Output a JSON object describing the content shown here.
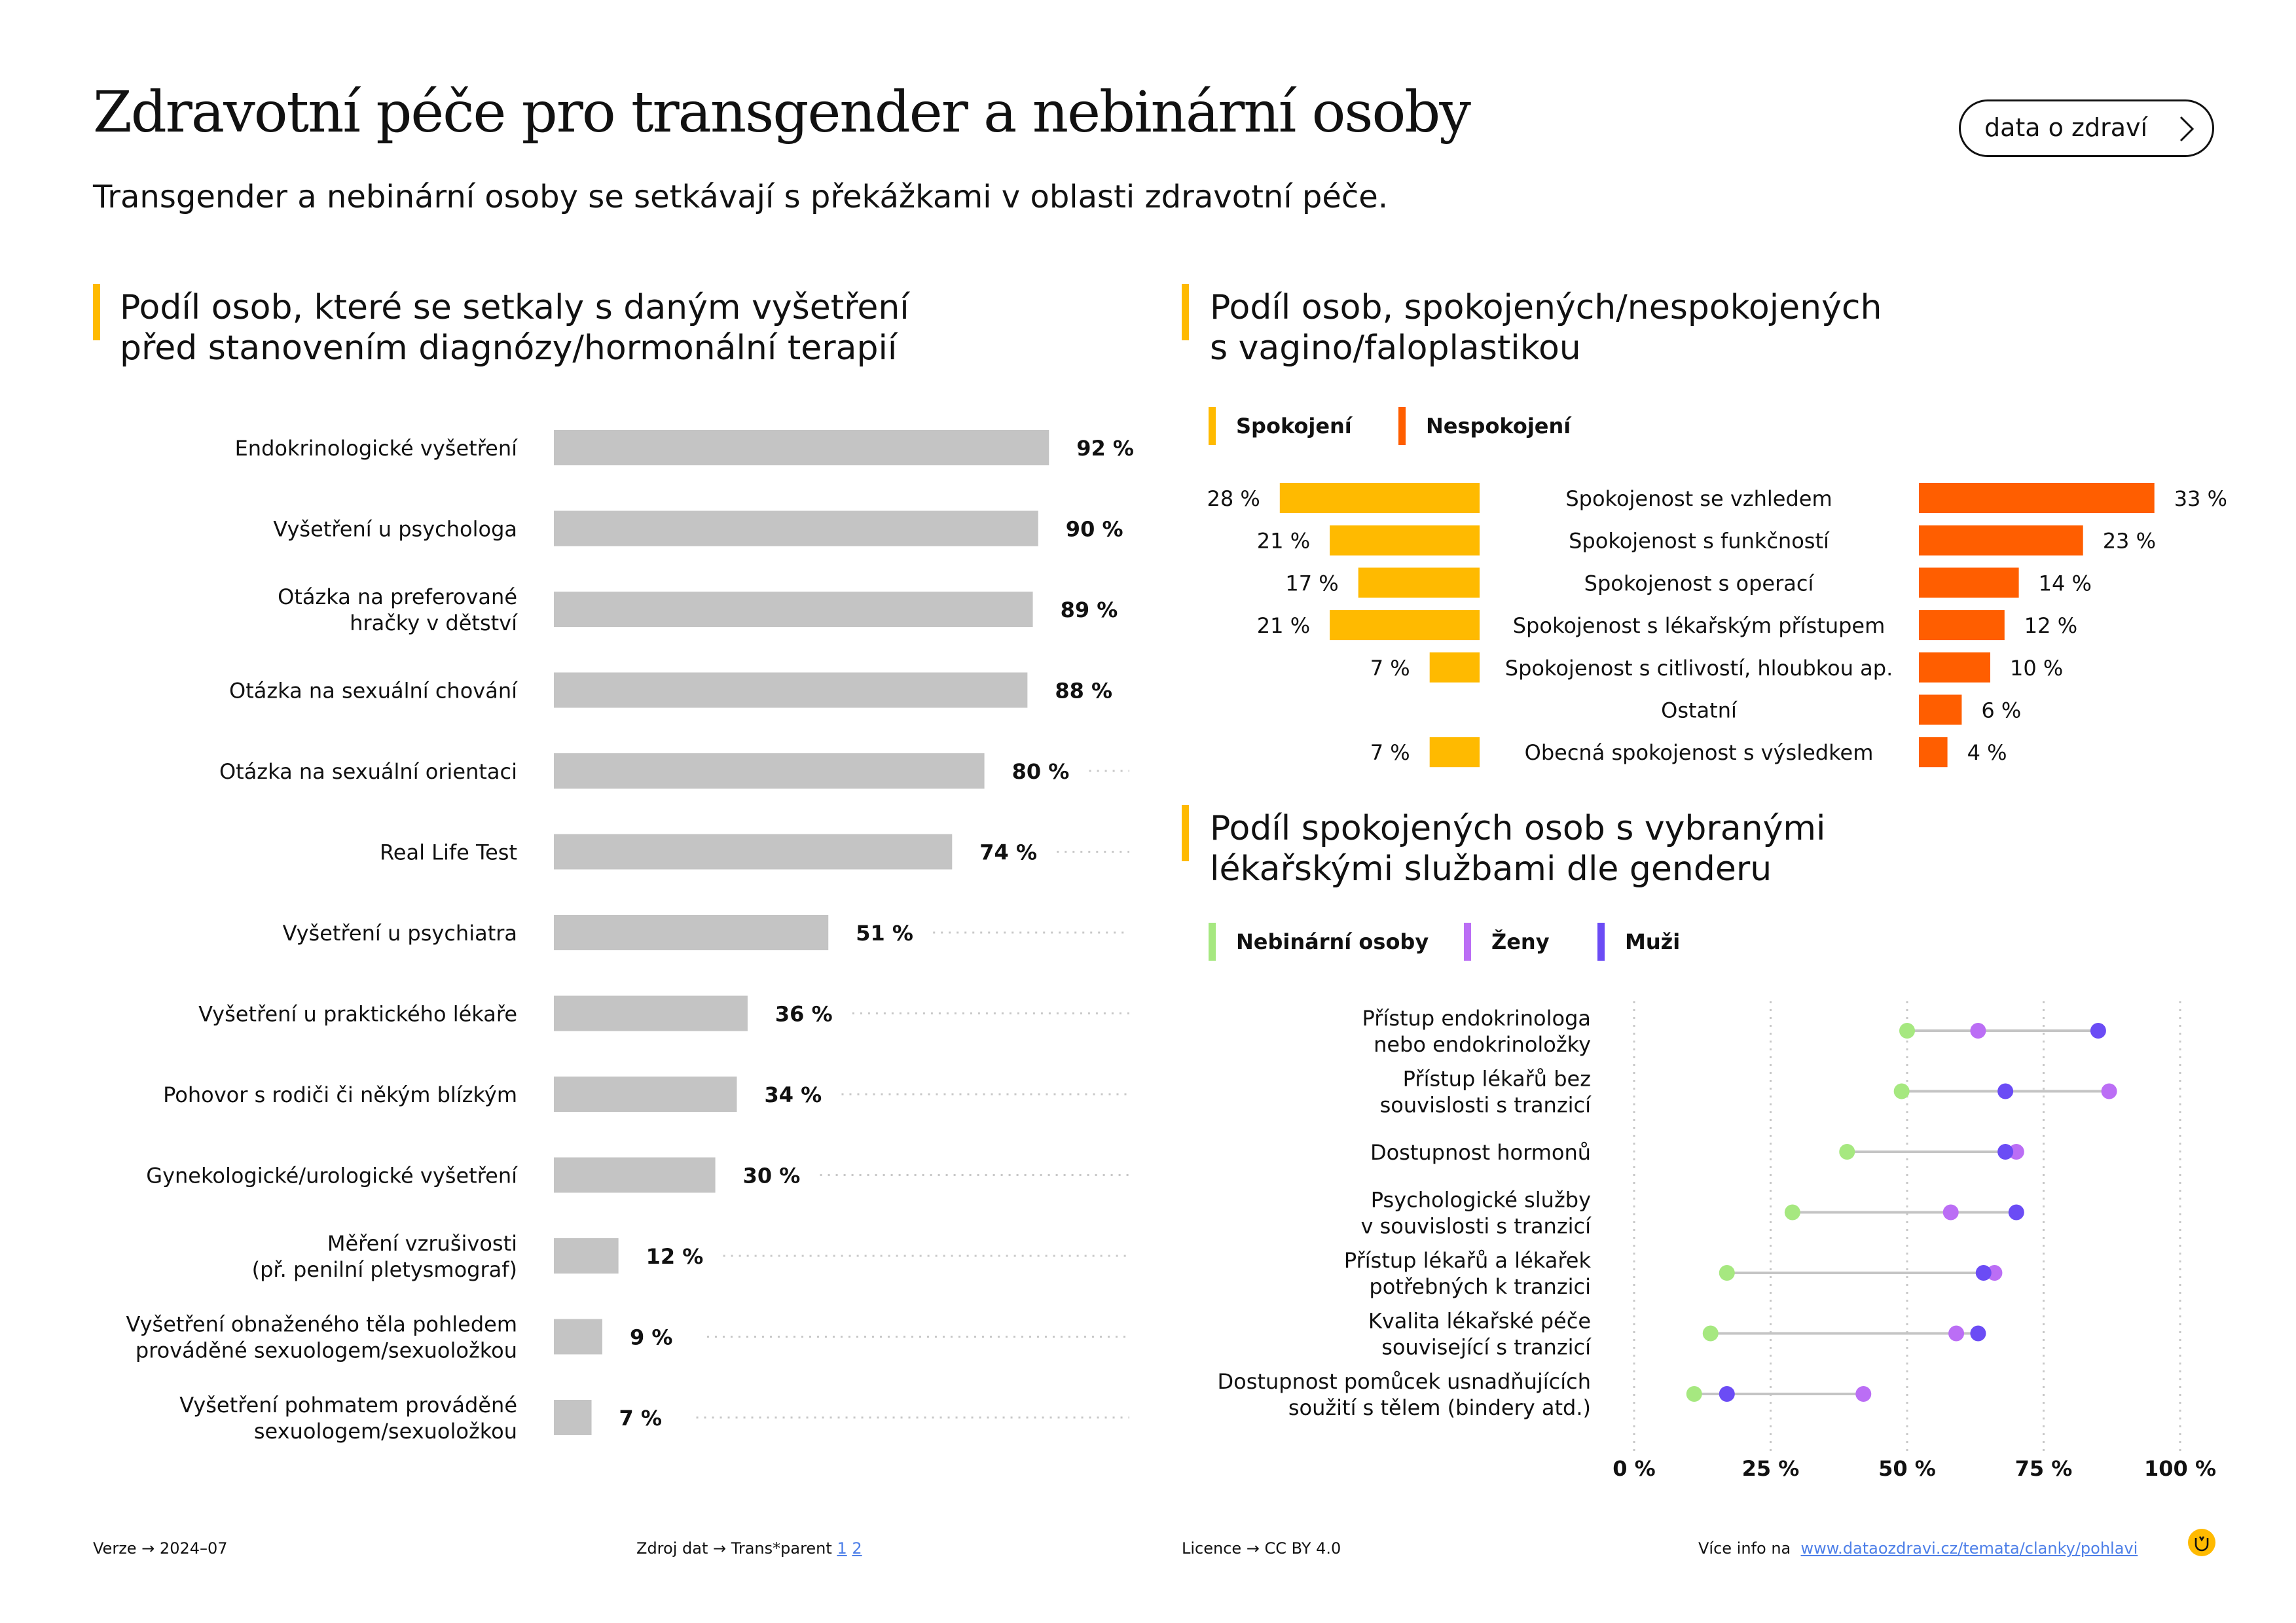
{
  "header": {
    "title": "Zdravotní péče pro transgender a nebinární osoby",
    "subtitle": "Transgender a nebinární osoby se setkávají s překážkami v oblasti zdravotní péče.",
    "button_label": "data o zdraví"
  },
  "colors": {
    "accent": "#ffba00",
    "bar_gray": "#c4c4c4",
    "satisfied": "#ffba00",
    "dissatisfied": "#ff5e00",
    "nonbinary": "#a6e880",
    "women": "#bb6ef5",
    "men": "#6b4cf5"
  },
  "sections": {
    "left_title_line1": "Podíl osob, které se setkaly s daným vyšetření",
    "left_title_line2": "před stanovením diagnózy/hormonální terapií",
    "right_top_title_line1": "Podíl osob, spokojených/nespokojených",
    "right_top_title_line2": "s vagino/faloplastikou",
    "right_bottom_title_line1": "Podíl spokojených osob s vybranými",
    "right_bottom_title_line2": "lékařskými službami dle genderu"
  },
  "chart_data": [
    {
      "type": "bar",
      "orientation": "horizontal",
      "categories": [
        [
          "Endokrinologické vyšetření"
        ],
        [
          "Vyšetření u psychologa"
        ],
        [
          "Otázka na preferované",
          "hračky v dětství"
        ],
        [
          "Otázka na sexuální chování"
        ],
        [
          "Otázka na sexuální orientaci"
        ],
        [
          "Real Life Test"
        ],
        [
          "Vyšetření u psychiatra"
        ],
        [
          "Vyšetření u praktického lékaře"
        ],
        [
          "Pohovor s rodiči či někým blízkým"
        ],
        [
          "Gynekologické/urologické vyšetření"
        ],
        [
          "Měření vzrušivosti",
          "(př. penilní pletysmograf)"
        ],
        [
          "Vyšetření obnaženého těla pohledem",
          "prováděné sexuologem/sexuoložkou"
        ],
        [
          "Vyšetření pohmatem prováděné",
          "sexuologem/sexuoložkou"
        ]
      ],
      "values": [
        92,
        90,
        89,
        88,
        80,
        74,
        51,
        36,
        34,
        30,
        12,
        9,
        7
      ],
      "value_labels": [
        "92 %",
        "90 %",
        "89 %",
        "88 %",
        "80 %",
        "74 %",
        "51 %",
        "36 %",
        "34 %",
        "30 %",
        "12 %",
        "9 %",
        "7 %"
      ],
      "xlim": [
        0,
        100
      ]
    },
    {
      "type": "bar",
      "orientation": "diverging",
      "legend": [
        "Spokojení",
        "Nespokojení"
      ],
      "categories": [
        "Spokojenost se vzhledem",
        "Spokojenost s funkčností",
        "Spokojenost s operací",
        "Spokojenost s lékařským přístupem",
        "Spokojenost s citlivostí, hloubkou ap.",
        "Ostatní",
        "Obecná spokojenost s výsledkem"
      ],
      "series": [
        {
          "name": "Spokojení",
          "values": [
            28,
            21,
            17,
            21,
            7,
            null,
            7
          ],
          "labels": [
            "28 %",
            "21 %",
            "17 %",
            "21 %",
            "7 %",
            "",
            "7 %"
          ]
        },
        {
          "name": "Nespokojení",
          "values": [
            33,
            23,
            14,
            12,
            10,
            6,
            4
          ],
          "labels": [
            "33 %",
            "23 %",
            "14 %",
            "12 %",
            "10 %",
            "6 %",
            "4 %"
          ]
        }
      ]
    },
    {
      "type": "scatter",
      "style": "dumbbell",
      "legend": [
        "Nebinární osoby",
        "Ženy",
        "Muži"
      ],
      "categories": [
        [
          "Přístup endokrinologa",
          "nebo endokrinoložky"
        ],
        [
          "Přístup lékařů bez",
          "souvislosti s tranzicí"
        ],
        [
          "Dostupnost hormonů"
        ],
        [
          "Psychologické služby",
          "v souvislosti s tranzicí"
        ],
        [
          "Přístup lékařů a lékařek",
          "potřebných k tranzici"
        ],
        [
          "Kvalita lékařské péče",
          "související s tranzicí"
        ],
        [
          "Dostupnost pomůcek usnadňujících",
          "soužití s tělem (bindery atd.)"
        ]
      ],
      "series": [
        {
          "name": "Nebinární osoby",
          "values": [
            50,
            49,
            39,
            29,
            17,
            14,
            11
          ]
        },
        {
          "name": "Ženy",
          "values": [
            63,
            87,
            70,
            58,
            66,
            59,
            42
          ]
        },
        {
          "name": "Muži",
          "values": [
            85,
            68,
            68,
            70,
            64,
            63,
            17
          ]
        }
      ],
      "xlim": [
        0,
        100
      ],
      "xticks": [
        0,
        25,
        50,
        75,
        100
      ],
      "xtick_labels": [
        "0 %",
        "25 %",
        "50 %",
        "75 %",
        "100 %"
      ]
    }
  ],
  "footer": {
    "version": "Verze  →  2024–07",
    "source": "Zdroj dat  →  Trans*parent",
    "source_ref1": "1",
    "source_ref2": "2",
    "license": "Licence  →  CC BY 4.0",
    "more_info": "Více info na",
    "more_info_link": "www.dataozdravi.cz/temata/clanky/pohlavi"
  }
}
